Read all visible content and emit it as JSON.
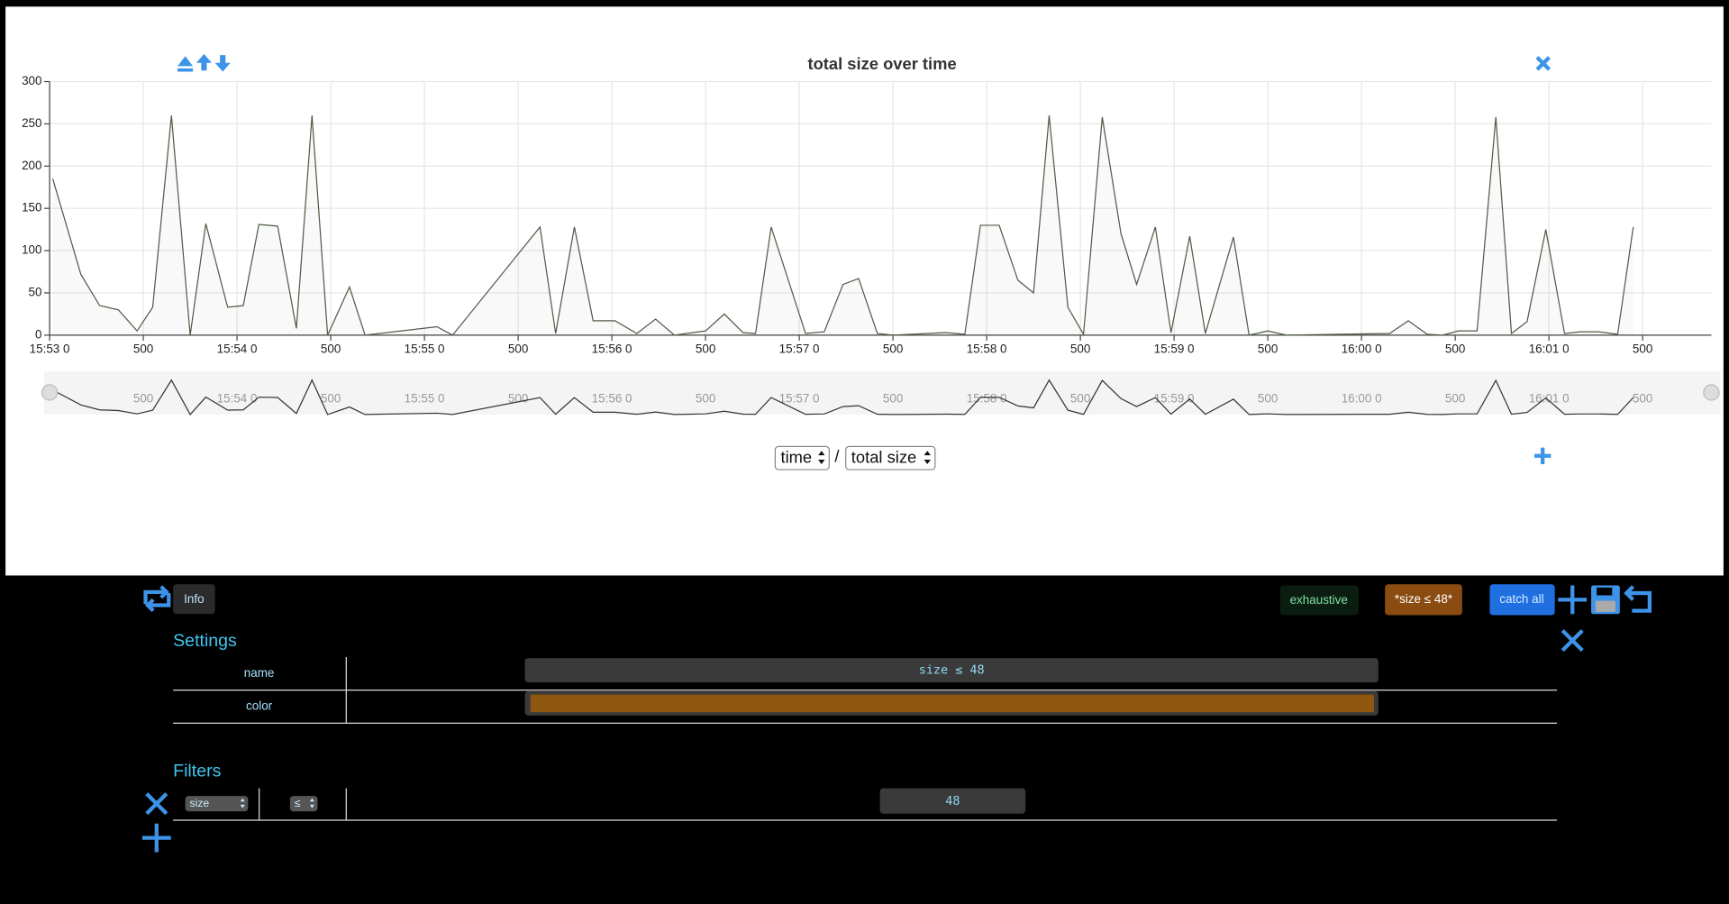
{
  "chart_data": {
    "type": "line",
    "title": "total size over time",
    "x": [
      "15:53:01",
      "15:53:10",
      "15:53:16",
      "15:53:22",
      "15:53:28",
      "15:53:33",
      "15:53:39",
      "15:53:45",
      "15:53:50",
      "15:53:57",
      "15:54:02",
      "15:54:07",
      "15:54:13",
      "15:54:19",
      "15:54:24",
      "15:54:29",
      "15:54:36",
      "15:54:41",
      "15:55:04",
      "15:55:09",
      "15:55:37",
      "15:55:42",
      "15:55:48",
      "15:55:54",
      "15:56:01",
      "15:56:08",
      "15:56:14",
      "15:56:20",
      "15:56:30",
      "15:56:36",
      "15:56:42",
      "15:56:46",
      "15:56:51",
      "15:57:02",
      "15:57:08",
      "15:57:14",
      "15:57:19",
      "15:57:25",
      "15:57:30",
      "15:57:47",
      "15:57:53",
      "15:57:58",
      "15:58:04",
      "15:58:10",
      "15:58:15",
      "15:58:20",
      "15:58:26",
      "15:58:31",
      "15:58:37",
      "15:58:43",
      "15:58:48",
      "15:58:54",
      "15:58:59",
      "15:59:05",
      "15:59:10",
      "15:59:19",
      "15:59:24",
      "15:59:30",
      "15:59:36",
      "16:00:09",
      "16:00:15",
      "16:00:21",
      "16:00:26",
      "16:00:31",
      "16:00:37",
      "16:00:43",
      "16:00:48",
      "16:00:53",
      "16:00:59",
      "16:01:05",
      "16:01:10",
      "16:01:16",
      "16:01:22",
      "16:01:27"
    ],
    "values": [
      185,
      72,
      35,
      30,
      5,
      33,
      260,
      0,
      132,
      33,
      35,
      131,
      129,
      8,
      260,
      0,
      57,
      0,
      10,
      0,
      128,
      2,
      128,
      17,
      17,
      2,
      19,
      0,
      5,
      25,
      3,
      2,
      128,
      2,
      4,
      60,
      67,
      2,
      0,
      3,
      1,
      130,
      130,
      65,
      50,
      260,
      33,
      1,
      258,
      120,
      60,
      128,
      3,
      117,
      2,
      116,
      0,
      5,
      0,
      2,
      17,
      1,
      0,
      5,
      5,
      258,
      2,
      16,
      125,
      2,
      4,
      4,
      1,
      128
    ],
    "color": "#4d5c47",
    "xlim": [
      "15:53:00",
      "16:01:52"
    ],
    "xticks": [
      {
        "value": "15:53:00",
        "label": "15:53 0"
      },
      {
        "value": "15:53:30",
        "label": "500"
      },
      {
        "value": "15:54:00",
        "label": "15:54 0"
      },
      {
        "value": "15:54:30",
        "label": "500"
      },
      {
        "value": "15:55:00",
        "label": "15:55 0"
      },
      {
        "value": "15:55:30",
        "label": "500"
      },
      {
        "value": "15:56:00",
        "label": "15:56 0"
      },
      {
        "value": "15:56:30",
        "label": "500"
      },
      {
        "value": "15:57:00",
        "label": "15:57 0"
      },
      {
        "value": "15:57:30",
        "label": "500"
      },
      {
        "value": "15:58:00",
        "label": "15:58 0"
      },
      {
        "value": "15:58:30",
        "label": "500"
      },
      {
        "value": "15:59:00",
        "label": "15:59 0"
      },
      {
        "value": "15:59:30",
        "label": "500"
      },
      {
        "value": "16:00:00",
        "label": "16:00 0"
      },
      {
        "value": "16:00:30",
        "label": "500"
      },
      {
        "value": "16:01:00",
        "label": "16:01 0"
      },
      {
        "value": "16:01:30",
        "label": "500"
      }
    ],
    "ylim": [
      0,
      300
    ],
    "yticks": [
      0,
      50,
      100,
      150,
      200,
      250,
      300
    ],
    "grid": true
  },
  "axis_selectors": {
    "x": "time",
    "separator": "/",
    "y": "total size"
  },
  "toolbar": {
    "info": "Info",
    "exhaustive": "exhaustive",
    "active": "*size ≤ 48*",
    "catch_all": "catch all"
  },
  "settings": {
    "title": "Settings",
    "name_label": "name",
    "name": "size ≤ 48",
    "color_label": "color",
    "color": "#8f560f"
  },
  "filters": {
    "title": "Filters",
    "field": "size",
    "operator": "≤",
    "value": "48"
  }
}
